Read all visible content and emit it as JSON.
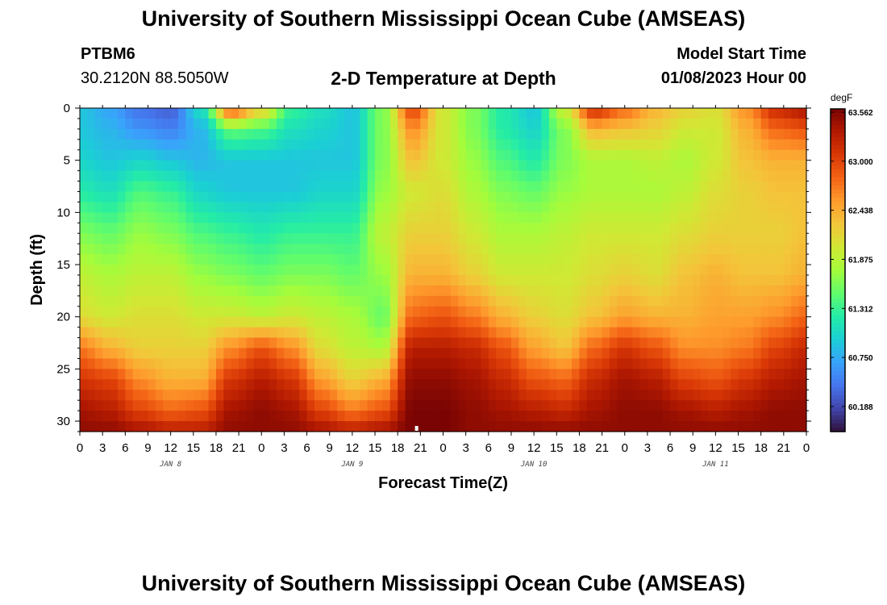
{
  "header": {
    "title": "University of Southern Mississippi Ocean Cube (AMSEAS)",
    "station": "PTBM6",
    "coords": "30.2120N  88.5050W",
    "subtitle": "2-D Temperature at Depth",
    "model_start_label": "Model Start Time",
    "model_start_value": "01/08/2023 Hour 00"
  },
  "footer": {
    "title": "University of Southern Mississippi Ocean Cube (AMSEAS)"
  },
  "chart_data": {
    "type": "heatmap",
    "title": "2-D Temperature at Depth",
    "xlabel": "Forecast Time(Z)",
    "ylabel": "Depth (ft)",
    "x_hours_range": [
      0,
      96
    ],
    "x_tick_labels": [
      "0",
      "3",
      "6",
      "9",
      "12",
      "15",
      "18",
      "21",
      "0",
      "3",
      "6",
      "9",
      "12",
      "15",
      "18",
      "21",
      "0",
      "3",
      "6",
      "9",
      "12",
      "15",
      "18",
      "21",
      "0",
      "3",
      "6",
      "9",
      "12",
      "15",
      "18",
      "21",
      "0"
    ],
    "date_labels": [
      "JAN 8",
      "JAN 9",
      "JAN 10",
      "JAN 11"
    ],
    "date_label_hours": [
      12,
      36,
      60,
      84
    ],
    "ylim": [
      0,
      31
    ],
    "y_ticks": [
      0,
      5,
      10,
      15,
      20,
      25,
      30
    ],
    "colorbar": {
      "unit": "degF",
      "min": 59.9,
      "max": 63.6,
      "tick_values": [
        63.562,
        63.0,
        62.438,
        61.875,
        61.312,
        60.75,
        60.188
      ],
      "tick_labels": [
        "63.562",
        "63.000",
        "62.438",
        "61.875",
        "61.312",
        "60.750",
        "60.188"
      ],
      "colors": [
        "#30123b",
        "#4145ab",
        "#4675ed",
        "#39a2fc",
        "#1bcfd4",
        "#24eca6",
        "#61fc6c",
        "#a4fc3b",
        "#d1e834",
        "#f3c63a",
        "#fe9b2d",
        "#f36315",
        "#d93806",
        "#b11901",
        "#7a0403"
      ]
    },
    "profiles_depth_ft": [
      0,
      2,
      5,
      8,
      12,
      16,
      20,
      23,
      26,
      29,
      31
    ],
    "profiles": [
      {
        "hour": 0,
        "temps": [
          60.9,
          60.9,
          61.0,
          61.2,
          61.6,
          61.9,
          62.1,
          62.7,
          63.1,
          63.4,
          63.5
        ]
      },
      {
        "hour": 4,
        "temps": [
          60.7,
          60.8,
          60.9,
          61.1,
          61.5,
          61.8,
          62.0,
          62.4,
          63.0,
          63.3,
          63.5
        ]
      },
      {
        "hour": 8,
        "temps": [
          60.4,
          60.6,
          61.0,
          61.4,
          61.7,
          61.9,
          62.1,
          62.2,
          62.6,
          63.0,
          63.4
        ]
      },
      {
        "hour": 12,
        "temps": [
          60.3,
          60.5,
          60.9,
          61.3,
          61.6,
          61.9,
          62.1,
          62.2,
          62.4,
          62.8,
          63.3
        ]
      },
      {
        "hour": 16,
        "temps": [
          61.1,
          60.8,
          60.8,
          61.0,
          61.4,
          61.7,
          62.0,
          62.2,
          62.4,
          62.9,
          63.3
        ]
      },
      {
        "hour": 20,
        "temps": [
          63.0,
          61.5,
          60.9,
          60.9,
          61.3,
          61.6,
          62.0,
          62.6,
          63.1,
          63.4,
          63.5
        ]
      },
      {
        "hour": 24,
        "temps": [
          62.3,
          61.4,
          60.9,
          60.9,
          61.2,
          61.5,
          61.9,
          62.9,
          63.3,
          63.5,
          63.5
        ]
      },
      {
        "hour": 28,
        "temps": [
          61.3,
          61.1,
          60.9,
          60.9,
          61.3,
          61.6,
          62.0,
          62.6,
          63.1,
          63.4,
          63.5
        ]
      },
      {
        "hour": 32,
        "temps": [
          61.1,
          61.0,
          60.9,
          61.0,
          61.3,
          61.6,
          61.9,
          62.1,
          62.5,
          63.0,
          63.4
        ]
      },
      {
        "hour": 36,
        "temps": [
          60.9,
          60.9,
          60.9,
          61.0,
          61.3,
          61.5,
          61.8,
          61.9,
          62.2,
          62.7,
          63.3
        ]
      },
      {
        "hour": 40,
        "temps": [
          61.6,
          61.6,
          61.6,
          61.7,
          61.9,
          61.7,
          61.5,
          61.8,
          62.4,
          62.9,
          63.4
        ]
      },
      {
        "hour": 44,
        "temps": [
          63.0,
          62.6,
          62.3,
          62.0,
          62.2,
          62.4,
          62.8,
          63.3,
          63.5,
          63.6,
          63.6
        ]
      },
      {
        "hour": 48,
        "temps": [
          62.0,
          62.0,
          62.0,
          62.1,
          62.2,
          62.4,
          62.9,
          63.3,
          63.5,
          63.6,
          63.6
        ]
      },
      {
        "hour": 52,
        "temps": [
          61.6,
          61.6,
          61.7,
          61.8,
          62.0,
          62.2,
          62.7,
          63.2,
          63.4,
          63.5,
          63.5
        ]
      },
      {
        "hour": 56,
        "temps": [
          61.2,
          61.2,
          61.4,
          61.6,
          61.8,
          62.0,
          62.4,
          62.9,
          63.2,
          63.4,
          63.5
        ]
      },
      {
        "hour": 60,
        "temps": [
          60.9,
          61.0,
          61.2,
          61.5,
          61.8,
          62.0,
          62.2,
          62.5,
          62.9,
          63.3,
          63.5
        ]
      },
      {
        "hour": 64,
        "temps": [
          62.0,
          61.6,
          61.6,
          61.7,
          61.9,
          62.0,
          62.1,
          62.3,
          62.8,
          63.2,
          63.5
        ]
      },
      {
        "hour": 68,
        "temps": [
          63.2,
          62.4,
          61.8,
          61.8,
          62.0,
          62.1,
          62.3,
          62.8,
          63.2,
          63.4,
          63.5
        ]
      },
      {
        "hour": 72,
        "temps": [
          62.8,
          62.3,
          61.8,
          61.8,
          62.0,
          62.2,
          62.5,
          63.1,
          63.4,
          63.5,
          63.5
        ]
      },
      {
        "hour": 76,
        "temps": [
          62.4,
          62.2,
          61.9,
          61.8,
          62.0,
          62.1,
          62.4,
          62.9,
          63.3,
          63.5,
          63.5
        ]
      },
      {
        "hour": 80,
        "temps": [
          62.2,
          62.0,
          61.8,
          61.9,
          62.1,
          62.3,
          62.4,
          62.6,
          63.0,
          63.4,
          63.5
        ]
      },
      {
        "hour": 84,
        "temps": [
          62.1,
          62.0,
          62.0,
          62.1,
          62.2,
          62.4,
          62.5,
          62.6,
          62.9,
          63.3,
          63.5
        ]
      },
      {
        "hour": 88,
        "temps": [
          62.6,
          62.4,
          62.3,
          62.2,
          62.2,
          62.3,
          62.5,
          62.7,
          63.1,
          63.4,
          63.5
        ]
      },
      {
        "hour": 92,
        "temps": [
          63.2,
          62.8,
          62.4,
          62.3,
          62.2,
          62.3,
          62.6,
          63.0,
          63.3,
          63.5,
          63.5
        ]
      },
      {
        "hour": 96,
        "temps": [
          63.4,
          62.9,
          62.4,
          62.3,
          62.3,
          62.4,
          62.8,
          63.2,
          63.4,
          63.5,
          63.5
        ]
      }
    ]
  }
}
